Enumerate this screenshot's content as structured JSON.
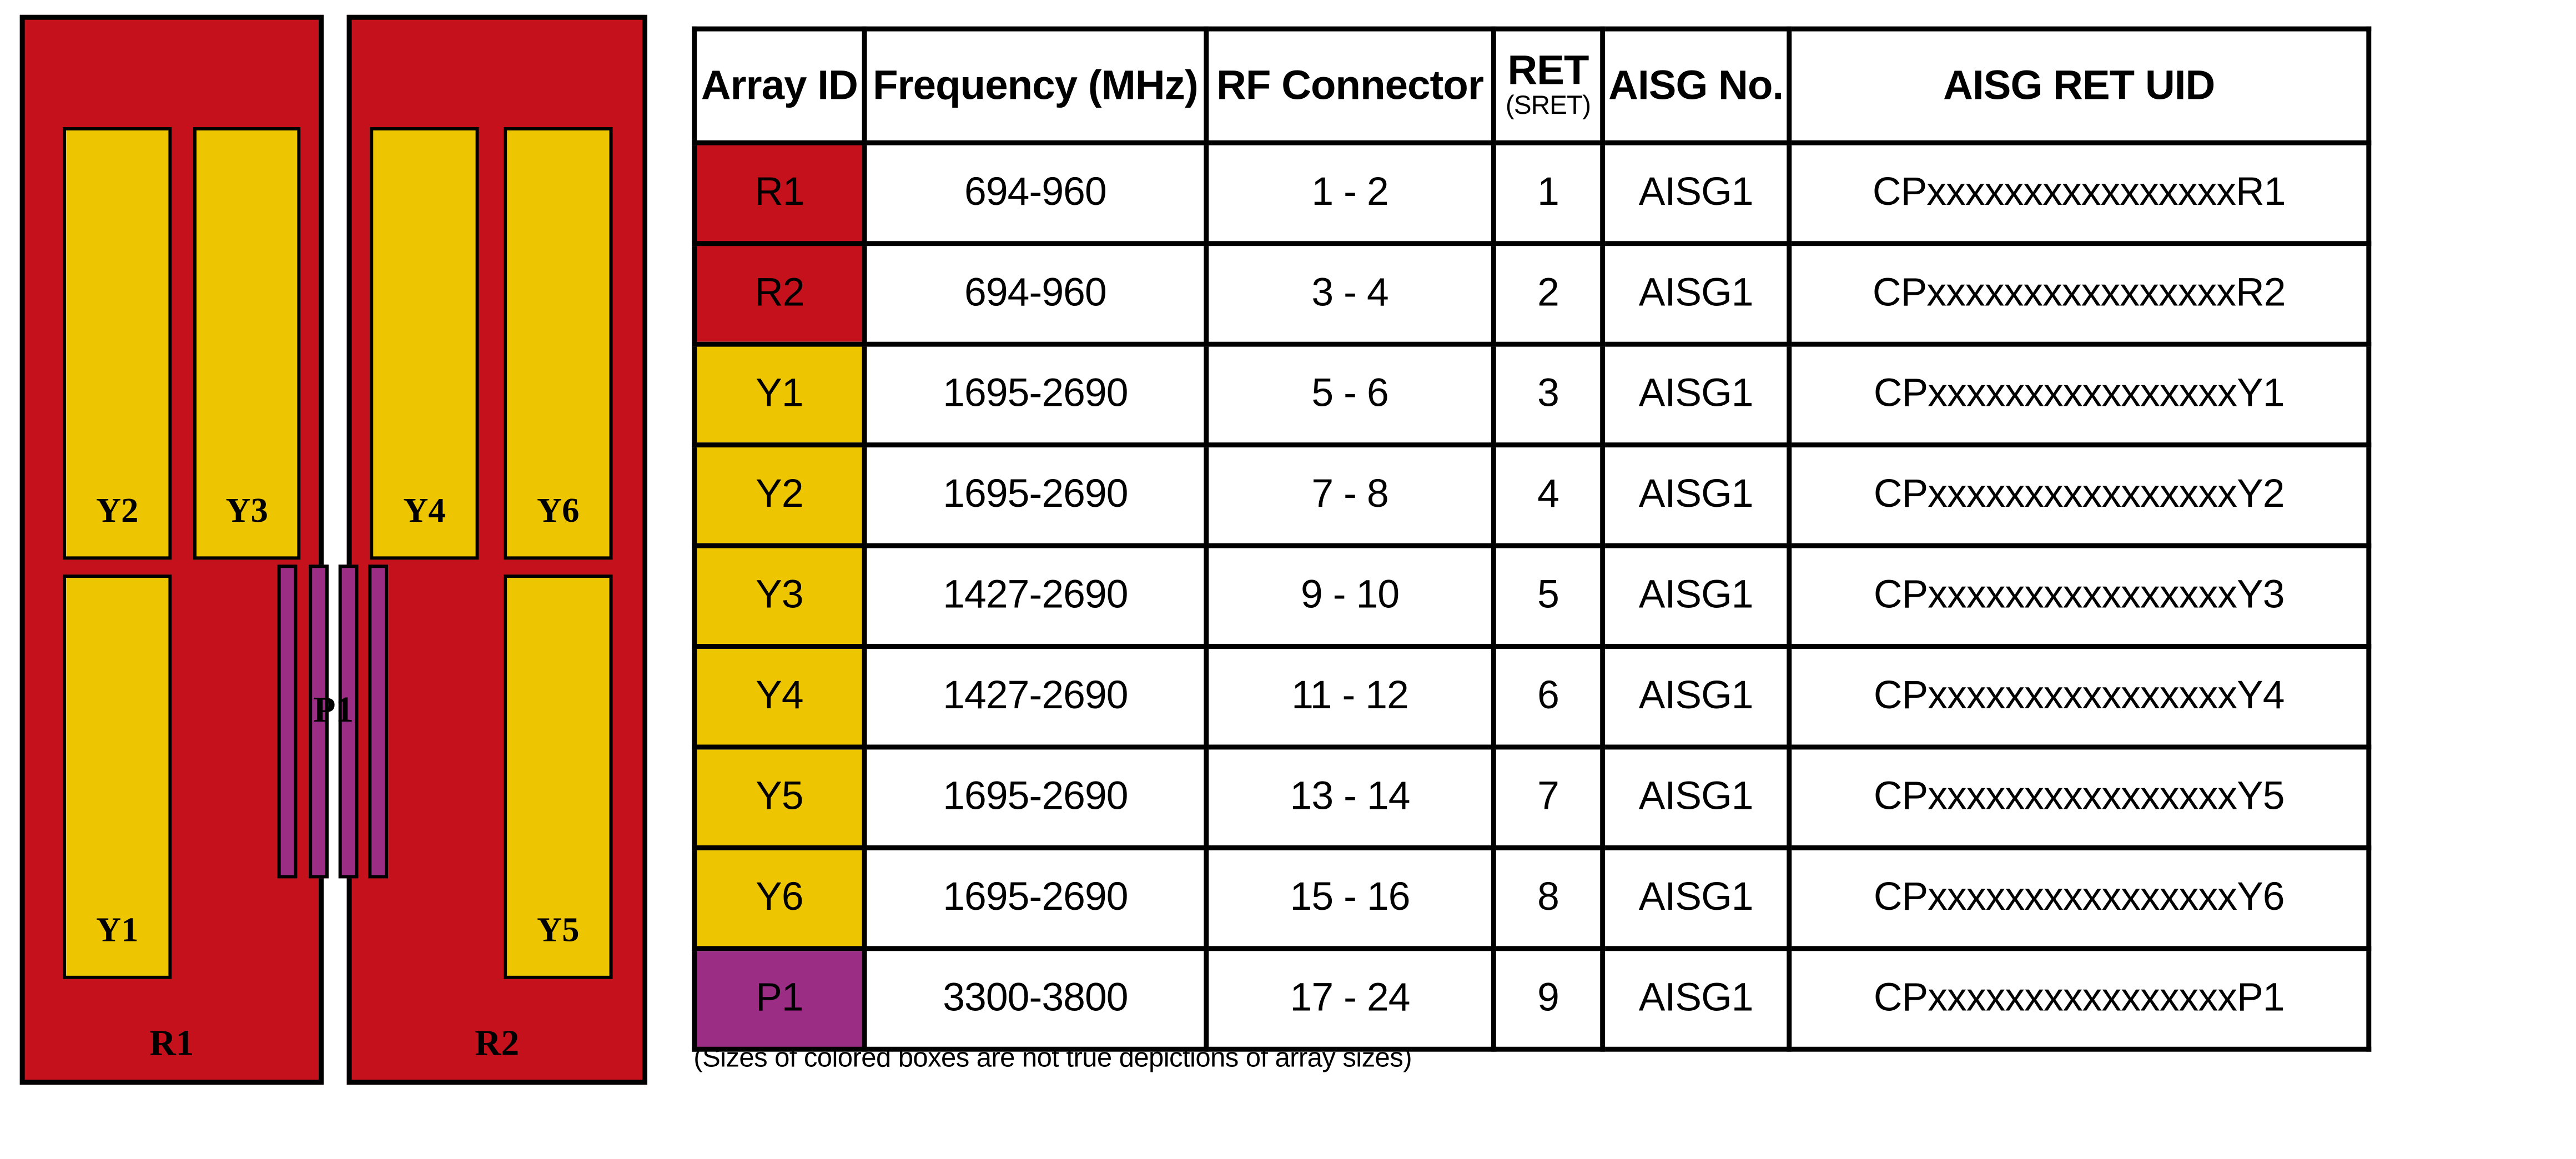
{
  "colors": {
    "red": "#C4111C",
    "yellow": "#EDC500",
    "purple": "#9C2D85",
    "border": "#000000"
  },
  "diagram": {
    "panels": [
      {
        "label": "R1",
        "boxes": [
          {
            "label": "Y2"
          },
          {
            "label": "Y3"
          },
          {
            "label": "Y1"
          }
        ]
      },
      {
        "label": "R2",
        "boxes": [
          {
            "label": "Y4"
          },
          {
            "label": "Y6"
          },
          {
            "label": "Y5"
          }
        ]
      }
    ],
    "pico_label": "P1"
  },
  "table": {
    "headers": {
      "array_id": "Array ID",
      "frequency": "Frequency (MHz)",
      "rf_connector": "RF Connector",
      "ret": "RET",
      "ret_sub": "(SRET)",
      "aisg_no": "AISG No.",
      "aisg_ret_uid": "AISG RET UID"
    },
    "rows": [
      {
        "array_id": "R1",
        "color": "red",
        "frequency": "694-960",
        "rf_connector": "1 - 2",
        "ret": "1",
        "aisg_no": "AISG1",
        "uid": "CPxxxxxxxxxxxxxxxxR1"
      },
      {
        "array_id": "R2",
        "color": "red",
        "frequency": "694-960",
        "rf_connector": "3 - 4",
        "ret": "2",
        "aisg_no": "AISG1",
        "uid": "CPxxxxxxxxxxxxxxxxR2"
      },
      {
        "array_id": "Y1",
        "color": "yellow",
        "frequency": "1695-2690",
        "rf_connector": "5 - 6",
        "ret": "3",
        "aisg_no": "AISG1",
        "uid": "CPxxxxxxxxxxxxxxxxY1"
      },
      {
        "array_id": "Y2",
        "color": "yellow",
        "frequency": "1695-2690",
        "rf_connector": "7 - 8",
        "ret": "4",
        "aisg_no": "AISG1",
        "uid": "CPxxxxxxxxxxxxxxxxY2"
      },
      {
        "array_id": "Y3",
        "color": "yellow",
        "frequency": "1427-2690",
        "rf_connector": "9 - 10",
        "ret": "5",
        "aisg_no": "AISG1",
        "uid": "CPxxxxxxxxxxxxxxxxY3"
      },
      {
        "array_id": "Y4",
        "color": "yellow",
        "frequency": "1427-2690",
        "rf_connector": "11 - 12",
        "ret": "6",
        "aisg_no": "AISG1",
        "uid": "CPxxxxxxxxxxxxxxxxY4"
      },
      {
        "array_id": "Y5",
        "color": "yellow",
        "frequency": "1695-2690",
        "rf_connector": "13 - 14",
        "ret": "7",
        "aisg_no": "AISG1",
        "uid": "CPxxxxxxxxxxxxxxxxY5"
      },
      {
        "array_id": "Y6",
        "color": "yellow",
        "frequency": "1695-2690",
        "rf_connector": "15 - 16",
        "ret": "8",
        "aisg_no": "AISG1",
        "uid": "CPxxxxxxxxxxxxxxxxY6"
      },
      {
        "array_id": "P1",
        "color": "purple",
        "frequency": "3300-3800",
        "rf_connector": "17 - 24",
        "ret": "9",
        "aisg_no": "AISG1",
        "uid": "CPxxxxxxxxxxxxxxxxP1"
      }
    ]
  },
  "note": "(Sizes of colored boxes are not true depictions of array sizes)"
}
